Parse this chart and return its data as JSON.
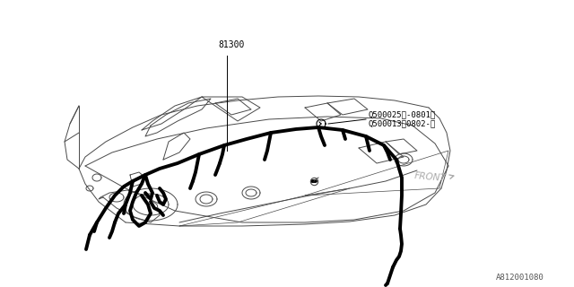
{
  "bg_color": "#ffffff",
  "line_color": "#000000",
  "thin_color": "#4a4a4a",
  "label_81300": "81300",
  "label_q1": "Q500025（-0801）",
  "label_q2": "Q500013（0802-）",
  "label_front": "FRONT",
  "label_part": "A812001080",
  "panel_outline": [
    [
      90,
      95,
      155,
      185,
      210,
      280,
      350,
      410,
      460,
      490,
      500,
      475,
      440,
      380,
      310,
      230,
      160,
      110,
      90
    ],
    [
      195,
      220,
      250,
      255,
      250,
      245,
      240,
      235,
      220,
      200,
      170,
      145,
      130,
      120,
      115,
      120,
      130,
      165,
      195
    ]
  ],
  "harness_main": [
    [
      145,
      165,
      185,
      205,
      230,
      255,
      280,
      310,
      340,
      370,
      395,
      415,
      430,
      440,
      445,
      443,
      440,
      438
    ],
    [
      205,
      195,
      185,
      180,
      170,
      162,
      155,
      148,
      145,
      148,
      152,
      162,
      175,
      195,
      215,
      235,
      255,
      268
    ]
  ]
}
